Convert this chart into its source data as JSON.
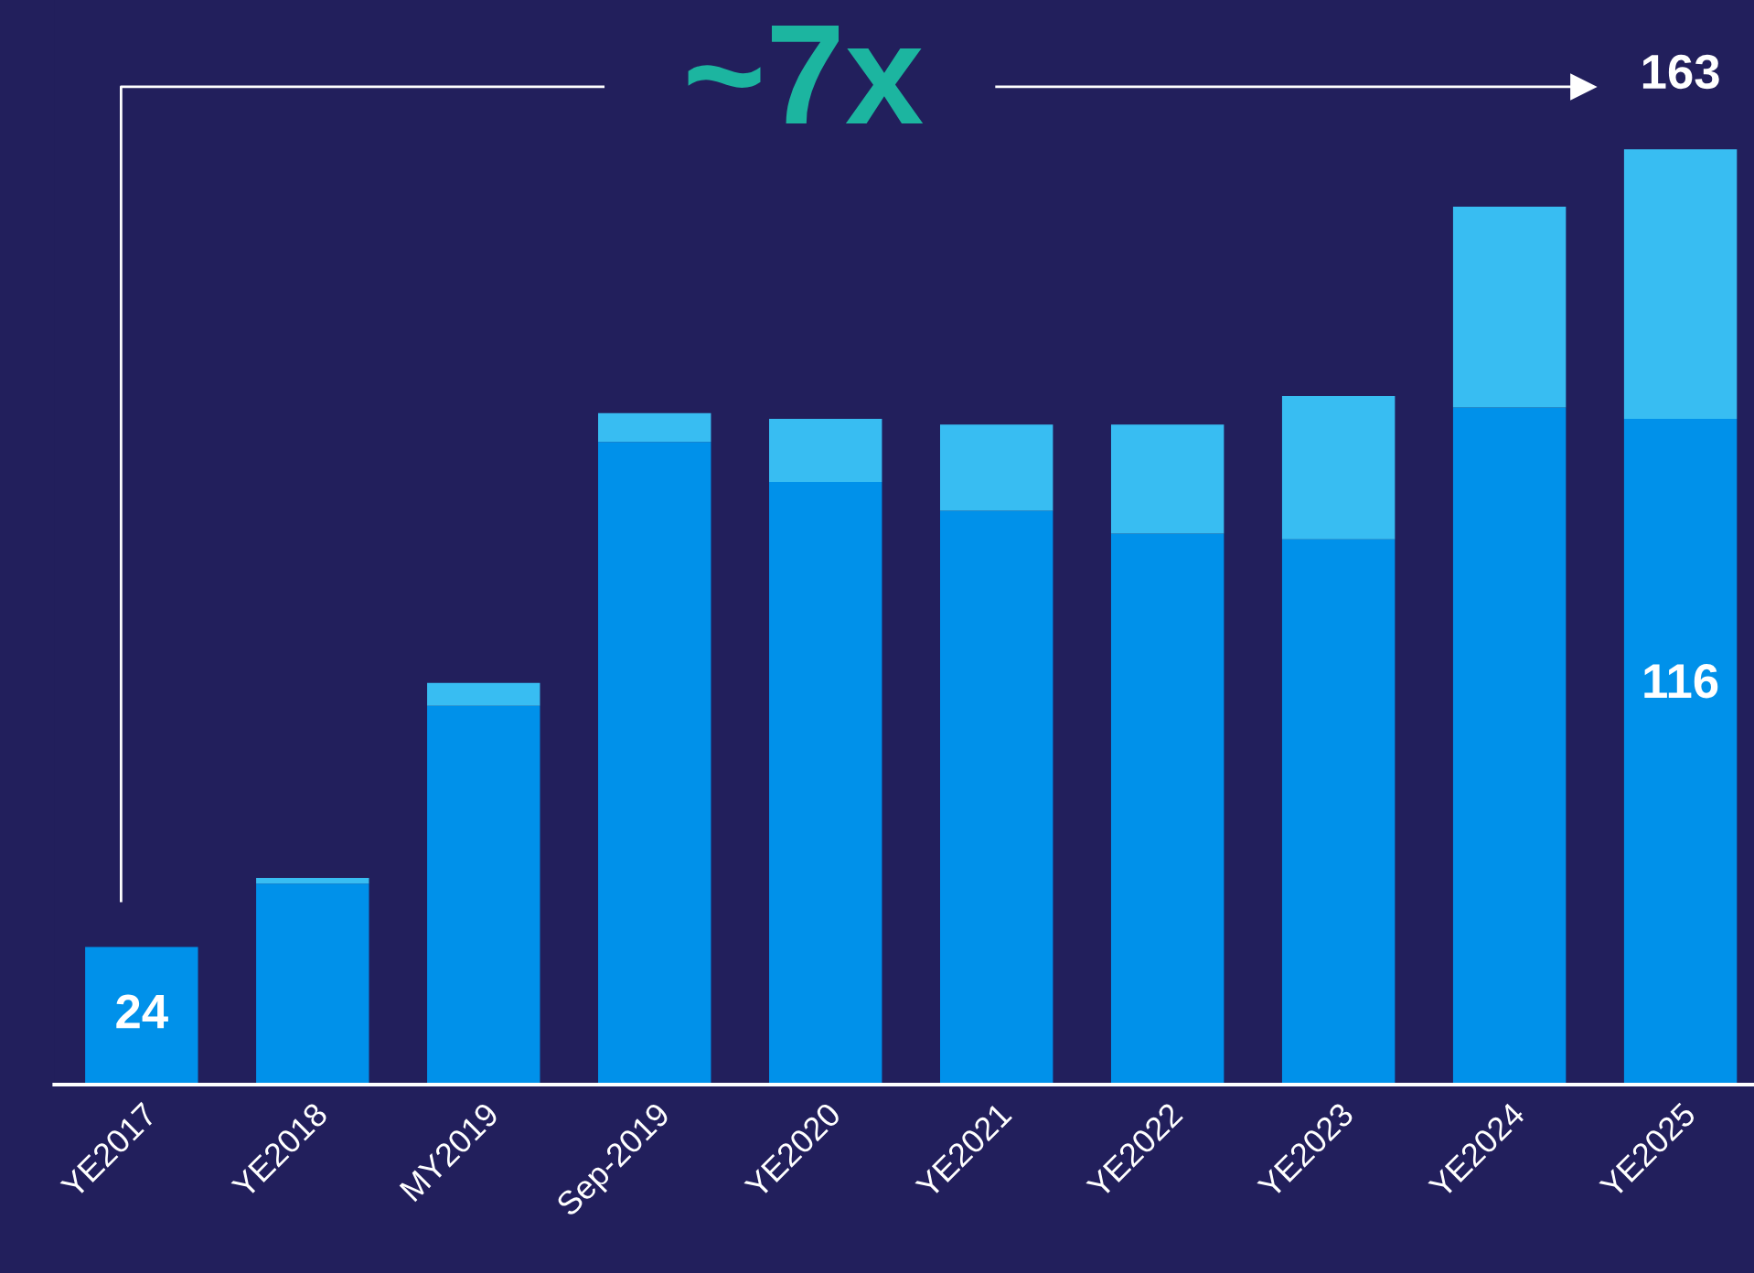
{
  "chart_data": {
    "type": "bar",
    "stacked": true,
    "categories": [
      "YE2017",
      "YE2018",
      "MY2019",
      "Sep-2019",
      "YE2020",
      "YE2021",
      "YE2022",
      "YE2023",
      "YE2024",
      "YE2025"
    ],
    "series": [
      {
        "color": "#0091ea",
        "values": [
          24,
          35,
          66,
          112,
          105,
          100,
          96,
          95,
          118,
          116
        ],
        "value_labels": [
          "24",
          null,
          null,
          null,
          null,
          null,
          null,
          null,
          null,
          "116"
        ]
      },
      {
        "color": "#38bdf2",
        "values": [
          0,
          1,
          4,
          5,
          11,
          15,
          19,
          25,
          35,
          47
        ]
      }
    ],
    "totals": [
      null,
      null,
      null,
      null,
      null,
      null,
      null,
      null,
      null,
      "163"
    ],
    "ylim": [
      0,
      189
    ],
    "annotations": [
      "~7x"
    ],
    "grid": false,
    "legend": false
  }
}
